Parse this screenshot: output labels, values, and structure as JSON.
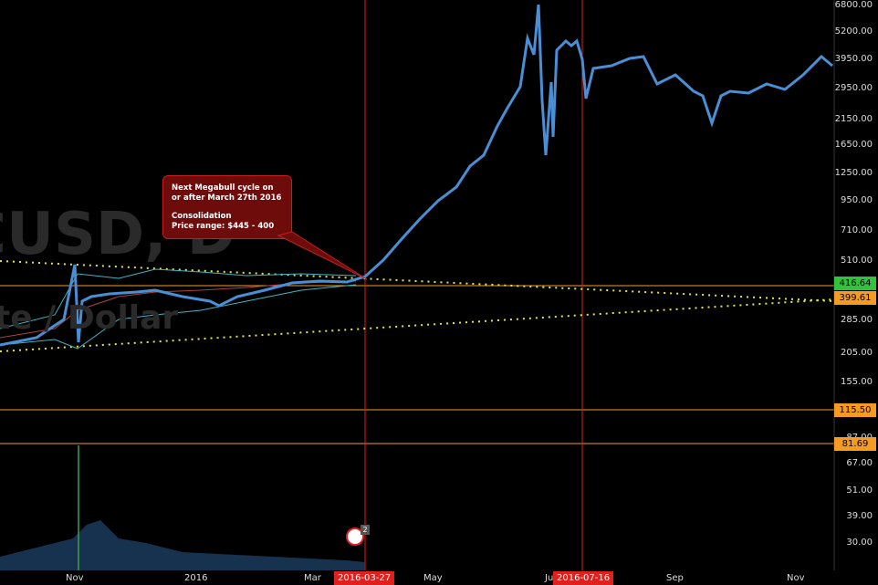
{
  "watermark": {
    "symbol": "CUSD, D",
    "subtitle": "te  / Dollar"
  },
  "y_axis": [
    "6800.00",
    "5200.00",
    "3950.00",
    "2950.00",
    "2150.00",
    "1650.00",
    "1250.00",
    "950.00",
    "710.00",
    "510.00",
    "285.00",
    "205.00",
    "155.00",
    "87.00",
    "67.00",
    "51.00",
    "39.00",
    "30.00"
  ],
  "price_tags": [
    {
      "value": "416.64",
      "color": "#2fc43a",
      "text_color": "#000"
    },
    {
      "value": "399.61",
      "color": "#f59a23",
      "text_color": "#000"
    },
    {
      "value": "115.50",
      "color": "#f59a23",
      "text_color": "#000"
    },
    {
      "value": "81.69",
      "color": "#f59a23",
      "text_color": "#000"
    }
  ],
  "x_axis": [
    "Nov",
    "2016",
    "Mar",
    "May",
    "Ju",
    "Sep",
    "Nov"
  ],
  "date_tags": [
    "2016-03-27",
    "2016-07-16"
  ],
  "callout": {
    "line1": "Next Megabull cycle on",
    "line2": "or after March 27th 2016",
    "line3": "Consolidation",
    "line4": "Price range: $445 - 400"
  },
  "badge_count": "2",
  "colors": {
    "up": "#4a8fd6",
    "bull_candle": "#3aa34a",
    "bear_candle": "#d9443b",
    "trend": "#e5e540",
    "vline": "#e0201d",
    "hline": "#f59a23",
    "bands": "#3fb5c4"
  }
}
